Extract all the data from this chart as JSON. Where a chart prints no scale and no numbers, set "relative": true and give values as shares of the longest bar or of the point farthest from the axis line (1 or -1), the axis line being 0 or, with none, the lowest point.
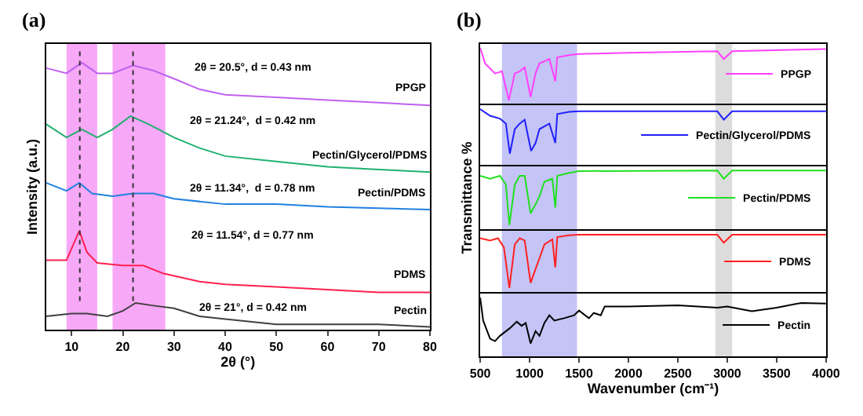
{
  "chart_data": [
    {
      "type": "line",
      "title": "(a)",
      "xlabel": "2θ (°)",
      "ylabel": "Intensity (a.u.)",
      "relative": true,
      "xlim": [
        5,
        80
      ],
      "xticks": [
        10,
        20,
        30,
        40,
        50,
        60,
        70,
        80
      ],
      "tick_labels": "x",
      "grid": false,
      "bands": [
        {
          "axis": "x",
          "from": 9,
          "to": 15,
          "color": "#f7a8f7"
        },
        {
          "axis": "x",
          "from": 18,
          "to": 28.3,
          "color": "#f7a8f7"
        }
      ],
      "ref_lines": [
        {
          "axis": "x",
          "value": 11.6,
          "color": "#333333",
          "line_style": "dotted"
        },
        {
          "axis": "x",
          "value": 22,
          "color": "#333333",
          "line_style": "dotted"
        }
      ],
      "annotations": [
        "2θ = 20.5°, d = 0.43 nm",
        "2θ = 21.24°,  d = 0.42 nm",
        "2θ = 11.34°,  d = 0.78 nm",
        "2θ = 11.54°, d = 0.77 nm",
        "2θ = 21°, d = 0.42 nm"
      ],
      "series": [
        {
          "name": "PPGP",
          "color": "#c060f0",
          "x": [
            5,
            9,
            12,
            15,
            18,
            22,
            26,
            30,
            35,
            40,
            50,
            60,
            70,
            80
          ],
          "values": [
            0.98,
            0.96,
            1.0,
            0.96,
            0.96,
            0.99,
            0.97,
            0.94,
            0.9,
            0.88,
            0.87,
            0.86,
            0.85,
            0.84
          ]
        },
        {
          "name": "Pectin/Glycerol/PDMS",
          "color": "#20b070",
          "x": [
            5,
            9,
            12,
            15,
            18,
            21.5,
            25,
            30,
            35,
            40,
            50,
            60,
            70,
            80
          ],
          "values": [
            0.77,
            0.72,
            0.75,
            0.72,
            0.75,
            0.8,
            0.77,
            0.72,
            0.68,
            0.65,
            0.63,
            0.61,
            0.6,
            0.59
          ]
        },
        {
          "name": "Pectin/PDMS",
          "color": "#2080e0",
          "x": [
            5,
            9,
            11.5,
            14,
            18,
            22,
            26,
            30,
            40,
            50,
            60,
            80
          ],
          "values": [
            0.55,
            0.52,
            0.55,
            0.51,
            0.5,
            0.51,
            0.51,
            0.49,
            0.47,
            0.47,
            0.46,
            0.45
          ]
        },
        {
          "name": "PDMS",
          "color": "#ff2050",
          "x": [
            5,
            9,
            11.5,
            13,
            15,
            20,
            24,
            28,
            35,
            40,
            50,
            60,
            70,
            80
          ],
          "values": [
            0.26,
            0.26,
            0.37,
            0.29,
            0.25,
            0.24,
            0.24,
            0.21,
            0.18,
            0.17,
            0.16,
            0.15,
            0.14,
            0.14
          ]
        },
        {
          "name": "Pectin",
          "color": "#404040",
          "x": [
            5,
            10,
            13,
            17,
            20,
            22.5,
            26,
            30,
            35,
            40,
            50,
            60,
            70,
            80
          ],
          "values": [
            0.05,
            0.06,
            0.06,
            0.05,
            0.07,
            0.1,
            0.09,
            0.08,
            0.05,
            0.04,
            0.02,
            0.02,
            0.02,
            0.01
          ]
        }
      ]
    },
    {
      "type": "line",
      "title": "(b)",
      "relative": true,
      "xlim": [
        500,
        4000
      ],
      "xticks": [
        500,
        1000,
        1500,
        2000,
        2500,
        3000,
        3500,
        4000
      ],
      "tick_labels": false,
      "grid": false,
      "legend": "right",
      "bands": [
        {
          "axis": "x",
          "from": 720,
          "to": 1480,
          "color": "#c4c4f6"
        },
        {
          "axis": "x",
          "from": 2880,
          "to": 3050,
          "color": "#dcdcdc"
        }
      ],
      "series": [
        {
          "name": "PPGP",
          "color": "#ff40ff",
          "x": [
            500,
            550,
            650,
            720,
            790,
            850,
            900,
            950,
            1010,
            1060,
            1100,
            1200,
            1260,
            1280,
            1400,
            1500,
            2000,
            2900,
            2965,
            3050,
            4000
          ],
          "values": [
            1.0,
            0.72,
            0.54,
            0.58,
            0.06,
            0.54,
            0.58,
            0.65,
            0.12,
            0.54,
            0.72,
            0.8,
            0.4,
            0.83,
            0.87,
            0.89,
            0.91,
            0.94,
            0.8,
            0.94,
            0.98
          ]
        }
      ]
    },
    {
      "type": "line",
      "relative": true,
      "xlim": [
        500,
        4000
      ],
      "xticks": [
        500,
        1000,
        1500,
        2000,
        2500,
        3000,
        3500,
        4000
      ],
      "tick_labels": false,
      "grid": false,
      "legend": "right",
      "bands": [
        {
          "axis": "x",
          "from": 720,
          "to": 1480,
          "color": "#c4c4f6"
        },
        {
          "axis": "x",
          "from": 2880,
          "to": 3050,
          "color": "#dcdcdc"
        }
      ],
      "series": [
        {
          "name": "Pectin/Glycerol/PDMS",
          "color": "#2020ff",
          "x": [
            500,
            600,
            700,
            760,
            800,
            850,
            900,
            950,
            1015,
            1060,
            1100,
            1200,
            1260,
            1280,
            1400,
            1500,
            2900,
            2965,
            3050,
            4000
          ],
          "values": [
            1.0,
            0.88,
            0.83,
            0.74,
            0.2,
            0.64,
            0.74,
            0.81,
            0.25,
            0.39,
            0.64,
            0.74,
            0.39,
            0.91,
            0.95,
            0.96,
            0.96,
            0.81,
            0.96,
            0.96
          ]
        }
      ]
    },
    {
      "type": "line",
      "ylabel": "Transmittance %",
      "relative": true,
      "xlim": [
        500,
        4000
      ],
      "xticks": [
        500,
        1000,
        1500,
        2000,
        2500,
        3000,
        3500,
        4000
      ],
      "tick_labels": false,
      "grid": false,
      "legend": "right",
      "bands": [
        {
          "axis": "x",
          "from": 720,
          "to": 1480,
          "color": "#c4c4f6"
        },
        {
          "axis": "x",
          "from": 2880,
          "to": 3050,
          "color": "#dcdcdc"
        }
      ],
      "series": [
        {
          "name": "Pectin/PDMS",
          "color": "#20e020",
          "x": [
            500,
            600,
            700,
            760,
            795,
            850,
            900,
            950,
            1010,
            1060,
            1100,
            1150,
            1230,
            1260,
            1280,
            1400,
            1500,
            2900,
            2965,
            3050,
            4000
          ],
          "values": [
            0.91,
            0.86,
            0.91,
            0.76,
            0.07,
            0.76,
            0.91,
            0.91,
            0.27,
            0.42,
            0.56,
            0.81,
            0.86,
            0.37,
            0.91,
            0.96,
            0.99,
            1.0,
            0.86,
            1.0,
            1.0
          ]
        }
      ]
    },
    {
      "type": "line",
      "relative": true,
      "xlim": [
        500,
        4000
      ],
      "xticks": [
        500,
        1000,
        1500,
        2000,
        2500,
        3000,
        3500,
        4000
      ],
      "tick_labels": false,
      "grid": false,
      "legend": "right",
      "bands": [
        {
          "axis": "x",
          "from": 720,
          "to": 1480,
          "color": "#c4c4f6"
        },
        {
          "axis": "x",
          "from": 2880,
          "to": 3050,
          "color": "#dcdcdc"
        }
      ],
      "series": [
        {
          "name": "PDMS",
          "color": "#ff2020",
          "x": [
            500,
            600,
            680,
            740,
            795,
            850,
            900,
            950,
            1010,
            1060,
            1100,
            1150,
            1230,
            1260,
            1280,
            1400,
            1500,
            2900,
            2965,
            3050,
            4000
          ],
          "values": [
            0.94,
            0.9,
            0.94,
            0.78,
            0.07,
            0.83,
            0.94,
            0.9,
            0.16,
            0.4,
            0.59,
            0.83,
            0.92,
            0.43,
            0.96,
            0.99,
            1.0,
            1.0,
            0.86,
            1.0,
            1.0
          ]
        }
      ]
    },
    {
      "type": "line",
      "xlabel": "Wavenumber (cm⁻¹)",
      "relative": true,
      "xlim": [
        500,
        4000
      ],
      "xticks": [
        500,
        1000,
        1500,
        2000,
        2500,
        3000,
        3500,
        4000
      ],
      "tick_labels": "x",
      "grid": false,
      "legend": "right",
      "bands": [
        {
          "axis": "x",
          "from": 720,
          "to": 1480,
          "color": "#c4c4f6"
        },
        {
          "axis": "x",
          "from": 2880,
          "to": 3050,
          "color": "#dcdcdc"
        }
      ],
      "series": [
        {
          "name": "Pectin",
          "color": "#000000",
          "x": [
            500,
            530,
            600,
            650,
            700,
            800,
            870,
            920,
            960,
            1010,
            1060,
            1100,
            1150,
            1200,
            1250,
            1350,
            1450,
            1500,
            1600,
            1650,
            1720,
            1760,
            2000,
            2500,
            2900,
            3000,
            3250,
            3500,
            3750,
            4000
          ],
          "values": [
            1.0,
            0.61,
            0.3,
            0.26,
            0.35,
            0.48,
            0.59,
            0.52,
            0.57,
            0.22,
            0.43,
            0.35,
            0.57,
            0.7,
            0.61,
            0.65,
            0.7,
            0.78,
            0.65,
            0.74,
            0.7,
            0.85,
            0.85,
            0.87,
            0.83,
            0.85,
            0.77,
            0.83,
            0.91,
            0.9
          ]
        }
      ]
    }
  ]
}
